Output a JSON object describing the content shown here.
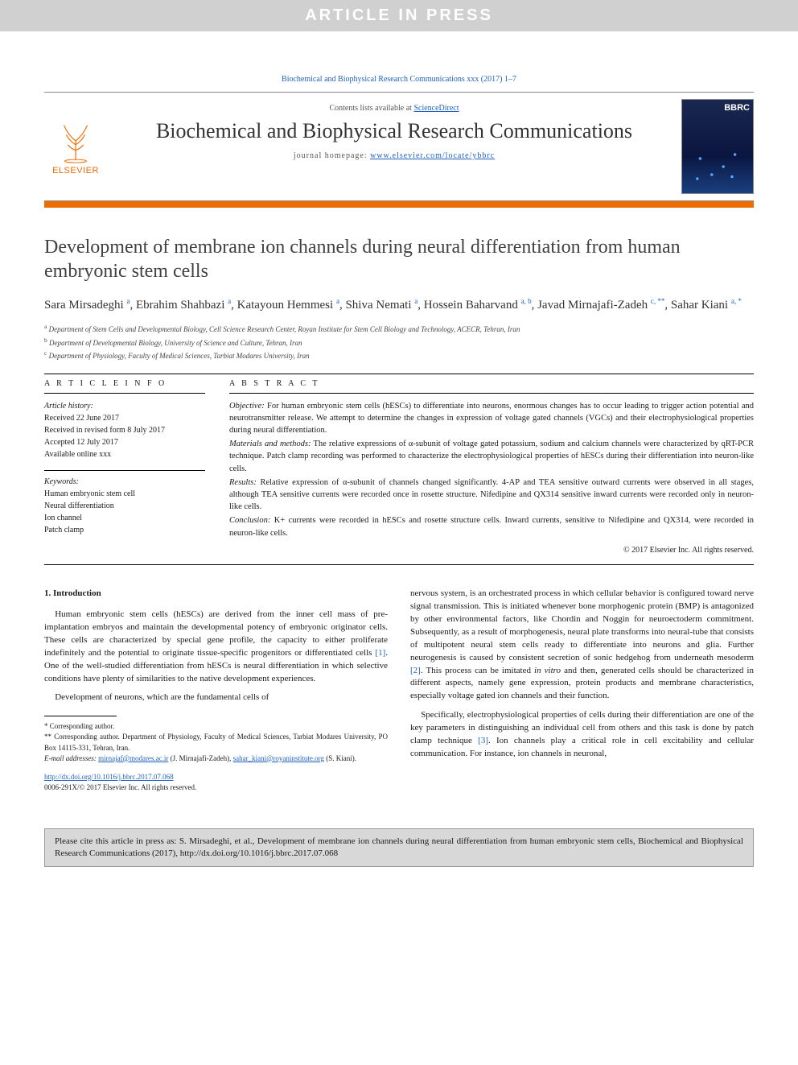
{
  "banner": "ARTICLE IN PRESS",
  "citation_top": "Biochemical and Biophysical Research Communications xxx (2017) 1–7",
  "masthead": {
    "contents_prefix": "Contents lists available at ",
    "contents_link": "ScienceDirect",
    "journal": "Biochemical and Biophysical Research Communications",
    "homepage_prefix": "journal homepage: ",
    "homepage_url": "www.elsevier.com/locate/ybbrc",
    "publisher": "ELSEVIER",
    "cover_abbr": "BBRC"
  },
  "title": "Development of membrane ion channels during neural differentiation from human embryonic stem cells",
  "authors_html": "Sara Mirsadeghi <sup>a</sup>, Ebrahim Shahbazi <sup>a</sup>, Katayoun Hemmesi <sup>a</sup>, Shiva Nemati <sup>a</sup>, Hossein Baharvand <sup>a, b</sup>, Javad Mirnajafi-Zadeh <sup>c, **</sup>, Sahar Kiani <sup>a, *</sup>",
  "affiliations": {
    "a": "Department of Stem Cells and Developmental Biology, Cell Science Research Center, Royan Institute for Stem Cell Biology and Technology, ACECR, Tehran, Iran",
    "b": "Department of Developmental Biology, University of Science and Culture, Tehran, Iran",
    "c": "Department of Physiology, Faculty of Medical Sciences, Tarbiat Modares University, Iran"
  },
  "article_info": {
    "heading": "A R T I C L E   I N F O",
    "history_label": "Article history:",
    "received": "Received 22 June 2017",
    "revised": "Received in revised form 8 July 2017",
    "accepted": "Accepted 12 July 2017",
    "online": "Available online xxx",
    "keywords_label": "Keywords:",
    "keywords": [
      "Human embryonic stem cell",
      "Neural differentiation",
      "Ion channel",
      "Patch clamp"
    ]
  },
  "abstract": {
    "heading": "A B S T R A C T",
    "objective_label": "Objective:",
    "objective": " For human embryonic stem cells (hESCs) to differentiate into neurons, enormous changes has to occur leading to trigger action potential and neurotransmitter release. We attempt to determine the changes in expression of voltage gated channels (VGCs) and their electrophysiological properties during neural differentiation.",
    "methods_label": "Materials and methods:",
    "methods": " The relative expressions of α-subunit of voltage gated potassium, sodium and calcium channels were characterized by qRT-PCR technique. Patch clamp recording was performed to characterize the electrophysiological properties of hESCs during their differentiation into neuron-like cells.",
    "results_label": "Results:",
    "results": " Relative expression of α-subunit of channels changed significantly. 4-AP and TEA sensitive outward currents were observed in all stages, although TEA sensitive currents were recorded once in rosette structure. Nifedipine and QX314 sensitive inward currents were recorded only in neuron-like cells.",
    "conclusion_label": "Conclusion:",
    "conclusion": " K+ currents were recorded in hESCs and rosette structure cells. Inward currents, sensitive to Nifedipine and QX314, were recorded in neuron-like cells.",
    "copyright": "© 2017 Elsevier Inc. All rights reserved."
  },
  "body": {
    "section_heading": "1. Introduction",
    "p1": "Human embryonic stem cells (hESCs) are derived from the inner cell mass of pre-implantation embryos and maintain the developmental potency of embryonic originator cells. These cells are characterized by special gene profile, the capacity to either proliferate indefinitely and the potential to originate tissue-specific progenitors or differentiated cells [1]. One of the well-studied differentiation from hESCs is neural differentiation in which selective conditions have plenty of similarities to the native development experiences.",
    "p2": "Development of neurons, which are the fundamental cells of",
    "p3": "nervous system, is an orchestrated process in which cellular behavior is configured toward nerve signal transmission. This is initiated whenever bone morphogenic protein (BMP) is antagonized by other environmental factors, like Chordin and Noggin for neuroectoderm commitment. Subsequently, as a result of morphogenesis, neural plate transforms into neural-tube that consists of multipotent neural stem cells ready to differentiate into neurons and glia. Further neurogenesis is caused by consistent secretion of sonic hedgehog from underneath mesoderm [2]. This process can be imitated in vitro and then, generated cells should be characterized in different aspects, namely gene expression, protein products and membrane characteristics, especially voltage gated ion channels and their function.",
    "p4": "Specifically, electrophysiological properties of cells during their differentiation are one of the key parameters in distinguishing an individual cell from others and this task is done by patch clamp technique [3]. Ion channels play a critical role in cell excitability and cellular communication. For instance, ion channels in neuronal,"
  },
  "footnotes": {
    "corr1": "* Corresponding author.",
    "corr2": "** Corresponding author. Department of Physiology, Faculty of Medical Sciences, Tarbiat Modares University, PO Box 14115-331, Tehran, Iran.",
    "email_label": "E-mail addresses:",
    "email1": "mirnajaf@modares.ac.ir",
    "email1_who": " (J. Mirnajafi-Zadeh), ",
    "email2": "sahar_kiani@royaninstitute.org",
    "email2_who": " (S. Kiani)."
  },
  "doi": {
    "url": "http://dx.doi.org/10.1016/j.bbrc.2017.07.068",
    "issn_line": "0006-291X/© 2017 Elsevier Inc. All rights reserved."
  },
  "cite_box": "Please cite this article in press as: S. Mirsadeghi, et al., Development of membrane ion channels during neural differentiation from human embryonic stem cells, Biochemical and Biophysical Research Communications (2017), http://dx.doi.org/10.1016/j.bbrc.2017.07.068",
  "colors": {
    "banner_bg": "#d0d0d0",
    "orange": "#ed6c00",
    "link": "#2060c0"
  }
}
